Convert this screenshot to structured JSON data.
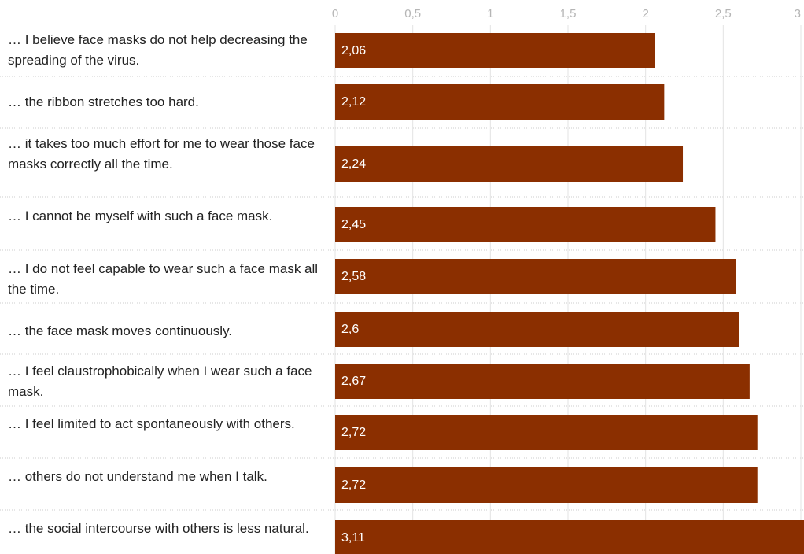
{
  "chart_data": {
    "type": "bar",
    "orientation": "horizontal",
    "color": "#8b2f00",
    "categories": [
      "… I believe face masks do not help decreasing the spreading of the virus.",
      "… the ribbon stretches too hard.",
      "… it takes too much effort for me to wear those face masks correctly all the time.",
      "… I cannot be myself with such a face mask.",
      "… I do not feel capable to wear such a face mask all the time.",
      "… the face mask moves continuously.",
      "… I feel claustrophobically when I wear such a face mask.",
      "… I feel limited to act spontaneously with others.",
      "… others do not understand me when I talk.",
      "… the social intercourse with others is less natural."
    ],
    "values": [
      2.06,
      2.12,
      2.24,
      2.45,
      2.58,
      2.6,
      2.67,
      2.72,
      2.72,
      3.11
    ],
    "value_labels": [
      "2,06",
      "2,12",
      "2,24",
      "2,45",
      "2,58",
      "2,6",
      "2,67",
      "2,72",
      "2,72",
      "3,11"
    ],
    "xlim": [
      0,
      3
    ],
    "xticks": [
      0,
      {
        "value": 0.5,
        "label": "0,5"
      },
      1,
      {
        "value": 1.5,
        "label": "1,5"
      },
      2,
      {
        "value": 2.5,
        "label": "2,5"
      },
      3
    ],
    "grid": true
  }
}
